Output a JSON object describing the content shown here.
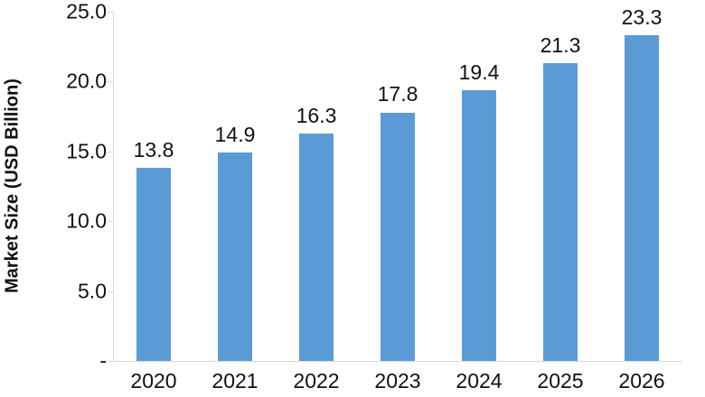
{
  "chart_data": {
    "type": "bar",
    "title": "",
    "categories": [
      "2020",
      "2021",
      "2022",
      "2023",
      "2024",
      "2025",
      "2026"
    ],
    "values": [
      13.8,
      14.9,
      16.3,
      17.8,
      19.4,
      21.3,
      23.3
    ],
    "value_labels": [
      "13.8",
      "14.9",
      "16.3",
      "17.8",
      "19.4",
      "21.3",
      "23.3"
    ],
    "xlabel": "",
    "ylabel": "Market Size (USD Billion)",
    "ylim": [
      0,
      25
    ],
    "yticks": [
      {
        "value": 25,
        "label": "25.0"
      },
      {
        "value": 20,
        "label": "20.0"
      },
      {
        "value": 15,
        "label": "15.0"
      },
      {
        "value": 10,
        "label": "10.0"
      },
      {
        "value": 5,
        "label": "5.0"
      },
      {
        "value": 0,
        "label": "-"
      }
    ],
    "grid": false,
    "legend": false,
    "bar_color": "#5b9bd5",
    "axis_color": "#d9d9d9",
    "text_color": "#111111"
  }
}
